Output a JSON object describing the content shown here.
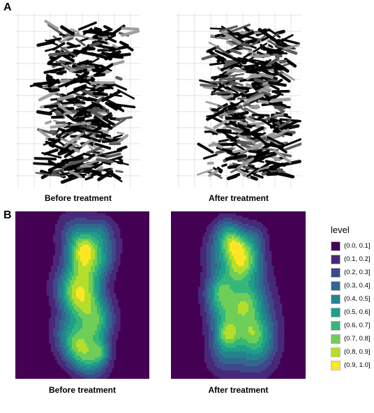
{
  "panels": {
    "a": {
      "label": "A"
    },
    "b": {
      "label": "B"
    }
  },
  "captions": {
    "a_before": "Before treatment",
    "a_after": "After treatment",
    "b_before": "Before treatment",
    "b_after": "After treatment"
  },
  "legend": {
    "title": "level",
    "entries": [
      {
        "label": "(0.0, 0.1]",
        "color": "#440154"
      },
      {
        "label": "(0.1, 0.2]",
        "color": "#482878"
      },
      {
        "label": "(0.2, 0.3]",
        "color": "#3e4989"
      },
      {
        "label": "(0.3, 0.4]",
        "color": "#31688e"
      },
      {
        "label": "(0.4, 0.5]",
        "color": "#26828e"
      },
      {
        "label": "(0.5, 0.6]",
        "color": "#1f9e89"
      },
      {
        "label": "(0.6, 0.7]",
        "color": "#35b779"
      },
      {
        "label": "(0.7, 0.8]",
        "color": "#6ece58"
      },
      {
        "label": "(0.8, 0.9]",
        "color": "#b5de2b"
      },
      {
        "label": "(0.9, 1.0]",
        "color": "#fde725"
      }
    ]
  }
}
